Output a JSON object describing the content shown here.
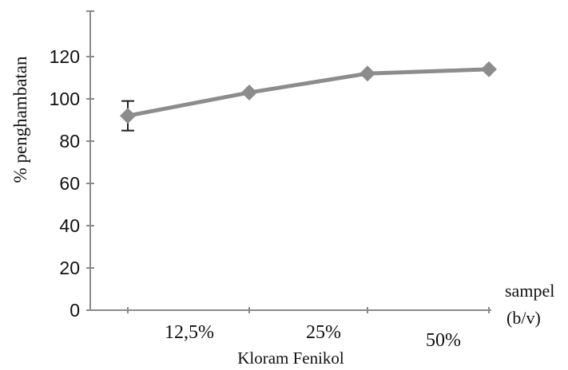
{
  "chart_data": {
    "type": "line",
    "title": "",
    "ylabel": "% penghambatan",
    "xlabel_right": [
      "sampel",
      "(b/v)"
    ],
    "xlabel_group": "Kloram Fenikol",
    "categories": [
      "",
      "12,5%",
      "25%",
      "50%"
    ],
    "ylim": [
      0,
      140
    ],
    "yticks": [
      0,
      20,
      40,
      60,
      80,
      100,
      120
    ],
    "grid": false,
    "series": [
      {
        "values": [
          92,
          103,
          112,
          114
        ],
        "error": [
          7,
          0,
          0,
          0
        ],
        "color": "#8c8c8c",
        "marker": "diamond"
      }
    ]
  }
}
